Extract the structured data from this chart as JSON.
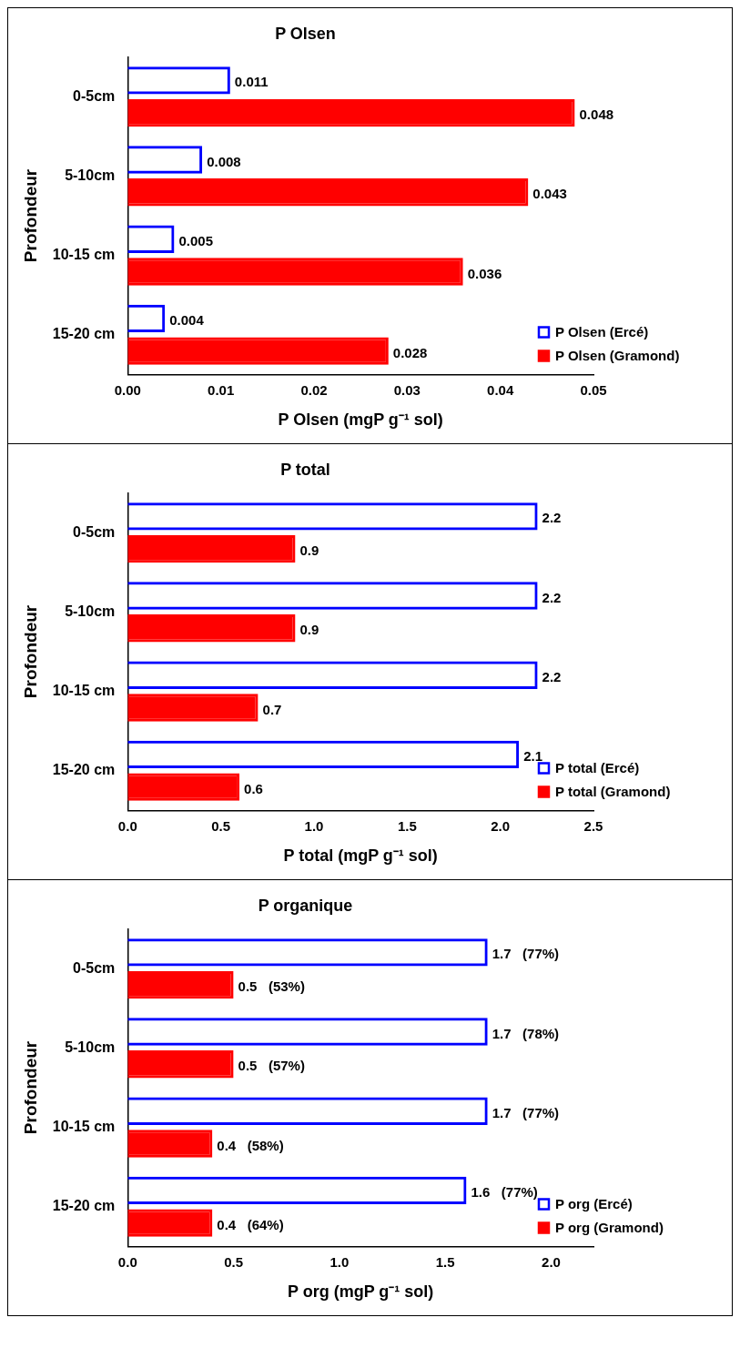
{
  "chart_data": [
    {
      "type": "bar",
      "orientation": "horizontal",
      "title": "P Olsen",
      "xlabel": "P Olsen (mgP g⁻¹ sol)",
      "ylabel": "Profondeur",
      "categories": [
        "0-5cm",
        "5-10cm",
        "10-15 cm",
        "15-20 cm"
      ],
      "series": [
        {
          "name": "P Olsen (Ercé)",
          "color": "#0000ff",
          "values": [
            0.011,
            0.008,
            0.005,
            0.004
          ]
        },
        {
          "name": "P Olsen (Gramond)",
          "color": "#ff0000",
          "values": [
            0.048,
            0.043,
            0.036,
            0.028
          ]
        }
      ],
      "xlim": [
        0,
        0.05
      ],
      "xticks": [
        {
          "value": 0,
          "label": "0.00"
        },
        {
          "value": 0.01,
          "label": "0.01"
        },
        {
          "value": 0.02,
          "label": "0.02"
        },
        {
          "value": 0.03,
          "label": "0.03"
        },
        {
          "value": 0.04,
          "label": "0.04"
        },
        {
          "value": 0.05,
          "label": "0.05"
        }
      ],
      "data_labels": true,
      "grid": false,
      "legend": "bottom right"
    },
    {
      "type": "bar",
      "orientation": "horizontal",
      "title": "P total",
      "xlabel": "P total (mgP g⁻¹ sol)",
      "ylabel": "Profondeur",
      "categories": [
        "0-5cm",
        "5-10cm",
        "10-15 cm",
        "15-20 cm"
      ],
      "series": [
        {
          "name": "P total (Ercé)",
          "color": "#0000ff",
          "values": [
            2.2,
            2.2,
            2.2,
            2.1
          ]
        },
        {
          "name": "P total (Gramond)",
          "color": "#ff0000",
          "values": [
            0.9,
            0.9,
            0.7,
            0.6
          ]
        }
      ],
      "xlim": [
        0,
        2.5
      ],
      "xticks": [
        {
          "value": 0,
          "label": "0.0"
        },
        {
          "value": 0.5,
          "label": "0.5"
        },
        {
          "value": 1,
          "label": "1.0"
        },
        {
          "value": 1.5,
          "label": "1.5"
        },
        {
          "value": 2,
          "label": "2.0"
        },
        {
          "value": 2.5,
          "label": "2.5"
        }
      ],
      "data_labels": true,
      "grid": false,
      "legend": "bottom right"
    },
    {
      "type": "bar",
      "orientation": "horizontal",
      "title": "P organique",
      "xlabel": "P org (mgP g⁻¹ sol)",
      "ylabel": "Profondeur",
      "categories": [
        "0-5cm",
        "5-10cm",
        "10-15 cm",
        "15-20 cm"
      ],
      "series": [
        {
          "name": "P org (Ercé)",
          "color": "#0000ff",
          "values": [
            1.7,
            1.7,
            1.7,
            1.6
          ],
          "value_labels": [
            "1.7   (77%)",
            "1.7   (78%)",
            "1.7   (77%)",
            "1.6   (77%)"
          ]
        },
        {
          "name": "P org (Gramond)",
          "color": "#ff0000",
          "values": [
            0.5,
            0.5,
            0.4,
            0.4
          ],
          "value_labels": [
            "0.5   (53%)",
            "0.5   (57%)",
            "0.4   (58%)",
            "0.4   (64%)"
          ]
        }
      ],
      "xlim": [
        0,
        2.2
      ],
      "xticks": [
        {
          "value": 0,
          "label": "0.0"
        },
        {
          "value": 0.5,
          "label": "0.5"
        },
        {
          "value": 1,
          "label": "1.0"
        },
        {
          "value": 1.5,
          "label": "1.5"
        },
        {
          "value": 2,
          "label": "2.0"
        }
      ],
      "grid": false,
      "legend": "bottom right"
    }
  ]
}
